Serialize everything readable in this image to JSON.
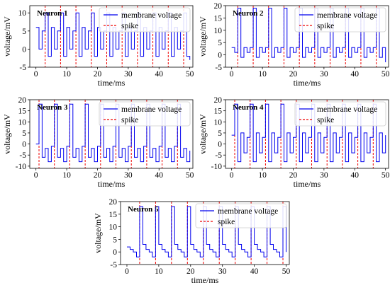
{
  "colors": {
    "voltage": "#0000ee",
    "spike": "#ee0000",
    "axis": "#000000"
  },
  "chart_data": [
    {
      "type": "line",
      "title": "Neuron 1",
      "xlabel": "time/ms",
      "ylabel": "voltage/mV",
      "xlim": [
        -2,
        51
      ],
      "ylim": [
        -5,
        12
      ],
      "xticks": [
        0,
        10,
        20,
        30,
        40,
        50
      ],
      "yticks": [
        -5,
        0,
        5,
        10
      ],
      "grid": false,
      "legend": {
        "placement": "top-right",
        "entries": [
          "membrane voltage",
          "spike"
        ]
      },
      "spike_times": [
        3,
        8,
        13,
        18,
        23,
        28,
        33,
        38,
        43,
        48
      ],
      "series": [
        {
          "name": "membrane voltage",
          "x": [
            0,
            1,
            2,
            3,
            4,
            5,
            6,
            7,
            8,
            9,
            10,
            11,
            12,
            13,
            14,
            15,
            16,
            17,
            18,
            19,
            20,
            21,
            22,
            23,
            24,
            25,
            26,
            27,
            28,
            29,
            30,
            31,
            32,
            33,
            34,
            35,
            36,
            37,
            38,
            39,
            40,
            41,
            42,
            43,
            44,
            45,
            46,
            47,
            48,
            49,
            50
          ],
          "y": [
            6,
            0,
            5,
            10,
            -2,
            6,
            0,
            5,
            10,
            -2,
            6,
            0,
            5,
            10,
            -2,
            6,
            0,
            5,
            10,
            -2,
            6,
            0,
            5,
            10,
            -2,
            6,
            0,
            5,
            10,
            -2,
            6,
            0,
            5,
            10,
            -2,
            6,
            0,
            5,
            10,
            -2,
            6,
            0,
            5,
            10,
            -2,
            6,
            0,
            5,
            10,
            -2,
            -3
          ]
        },
        {
          "name": "spike",
          "style": "dashed"
        }
      ]
    },
    {
      "type": "line",
      "title": "Neuron 2",
      "xlabel": "time/ms",
      "ylabel": "voltage/mV",
      "xlim": [
        -2,
        51
      ],
      "ylim": [
        -5,
        20
      ],
      "xticks": [
        0,
        10,
        20,
        30,
        40,
        50
      ],
      "yticks": [
        -5,
        0,
        5,
        10,
        15,
        20
      ],
      "grid": false,
      "legend": {
        "placement": "top-right",
        "entries": [
          "membrane voltage",
          "spike"
        ]
      },
      "spike_times": [
        2,
        7,
        12,
        17,
        22,
        27,
        32,
        37,
        42,
        47
      ],
      "series": [
        {
          "name": "membrane voltage",
          "x": [
            0,
            1,
            2,
            3,
            4,
            5,
            6,
            7,
            8,
            9,
            10,
            11,
            12,
            13,
            14,
            15,
            16,
            17,
            18,
            19,
            20,
            21,
            22,
            23,
            24,
            25,
            26,
            27,
            28,
            29,
            30,
            31,
            32,
            33,
            34,
            35,
            36,
            37,
            38,
            39,
            40,
            41,
            42,
            43,
            44,
            45,
            46,
            47,
            48,
            49,
            50
          ],
          "y": [
            3,
            1,
            19,
            -1,
            3,
            1,
            3,
            19,
            -1,
            3,
            1,
            3,
            19,
            -1,
            3,
            1,
            3,
            19,
            -1,
            3,
            1,
            3,
            19,
            -1,
            3,
            1,
            3,
            19,
            -1,
            3,
            1,
            3,
            19,
            -1,
            3,
            1,
            3,
            19,
            -1,
            3,
            1,
            3,
            19,
            -1,
            3,
            1,
            3,
            19,
            -1,
            3,
            -3
          ]
        },
        {
          "name": "spike",
          "style": "dashed"
        }
      ]
    },
    {
      "type": "line",
      "title": "Neuron 3",
      "xlabel": "time/ms",
      "ylabel": "voltage/mV",
      "xlim": [
        -2,
        51
      ],
      "ylim": [
        -11,
        20
      ],
      "xticks": [
        0,
        10,
        20,
        30,
        40,
        50
      ],
      "yticks": [
        -10,
        -5,
        0,
        5,
        10,
        15,
        20
      ],
      "grid": false,
      "legend": {
        "placement": "top-right",
        "entries": [
          "membrane voltage",
          "spike"
        ]
      },
      "spike_times": [
        1,
        6,
        11,
        16,
        21,
        26,
        31,
        36,
        41,
        46
      ],
      "series": [
        {
          "name": "membrane voltage",
          "x": [
            0,
            1,
            2,
            3,
            4,
            5,
            6,
            7,
            8,
            9,
            10,
            11,
            12,
            13,
            14,
            15,
            16,
            17,
            18,
            19,
            20,
            21,
            22,
            23,
            24,
            25,
            26,
            27,
            28,
            29,
            30,
            31,
            32,
            33,
            34,
            35,
            36,
            37,
            38,
            39,
            40,
            41,
            42,
            43,
            44,
            45,
            46,
            47,
            48,
            49,
            50
          ],
          "y": [
            0,
            18,
            -6,
            -2,
            -8,
            -1,
            18,
            -6,
            -2,
            -8,
            -1,
            18,
            -6,
            -2,
            -8,
            -1,
            18,
            -6,
            -2,
            -8,
            -1,
            18,
            -6,
            -2,
            -8,
            -1,
            18,
            -6,
            -2,
            -8,
            -1,
            18,
            -6,
            -2,
            -8,
            -1,
            18,
            -6,
            -2,
            -8,
            -1,
            18,
            -6,
            -2,
            -8,
            -1,
            18,
            -6,
            -2,
            -8,
            -3
          ]
        },
        {
          "name": "spike",
          "style": "dashed"
        }
      ]
    },
    {
      "type": "line",
      "title": "Neuron 4",
      "xlabel": "time/ms",
      "ylabel": "voltage/mV",
      "xlim": [
        -2,
        51
      ],
      "ylim": [
        -11,
        20
      ],
      "xticks": [
        0,
        10,
        20,
        30,
        40,
        50
      ],
      "yticks": [
        -10,
        -5,
        0,
        5,
        10,
        15,
        20
      ],
      "grid": false,
      "legend": {
        "placement": "top-right",
        "entries": [
          "membrane voltage",
          "spike"
        ]
      },
      "spike_times": [
        1,
        6,
        11,
        16,
        21,
        26,
        31,
        36,
        41,
        46
      ],
      "series": [
        {
          "name": "membrane voltage",
          "x": [
            0,
            1,
            2,
            3,
            4,
            5,
            6,
            7,
            8,
            9,
            10,
            11,
            12,
            13,
            14,
            15,
            16,
            17,
            18,
            19,
            20,
            21,
            22,
            23,
            24,
            25,
            26,
            27,
            28,
            29,
            30,
            31,
            32,
            33,
            34,
            35,
            36,
            37,
            38,
            39,
            40,
            41,
            42,
            43,
            44,
            45,
            46,
            47,
            48,
            49,
            50
          ],
          "y": [
            4,
            18,
            -8,
            5,
            -4,
            3,
            18,
            -8,
            5,
            -4,
            3,
            18,
            -8,
            5,
            -4,
            3,
            18,
            -8,
            5,
            -4,
            3,
            18,
            -8,
            5,
            -4,
            3,
            18,
            -8,
            5,
            -4,
            3,
            18,
            -8,
            5,
            -4,
            3,
            18,
            -8,
            5,
            -4,
            3,
            18,
            -8,
            5,
            -4,
            3,
            18,
            -8,
            5,
            -4,
            4
          ]
        },
        {
          "name": "spike",
          "style": "dashed"
        }
      ]
    },
    {
      "type": "line",
      "title": "Neuron 5",
      "xlabel": "time/ms",
      "ylabel": "voltage/mV",
      "xlim": [
        -2,
        51
      ],
      "ylim": [
        -5,
        20
      ],
      "xticks": [
        0,
        10,
        20,
        30,
        40,
        50
      ],
      "yticks": [
        -5,
        0,
        5,
        10,
        15,
        20
      ],
      "grid": false,
      "legend": {
        "placement": "top-right",
        "entries": [
          "membrane voltage",
          "spike"
        ]
      },
      "spike_times": [
        4,
        9,
        14,
        19,
        24,
        29,
        34,
        39,
        44,
        49
      ],
      "series": [
        {
          "name": "membrane voltage",
          "x": [
            0,
            1,
            2,
            3,
            4,
            5,
            6,
            7,
            8,
            9,
            10,
            11,
            12,
            13,
            14,
            15,
            16,
            17,
            18,
            19,
            20,
            21,
            22,
            23,
            24,
            25,
            26,
            27,
            28,
            29,
            30,
            31,
            32,
            33,
            34,
            35,
            36,
            37,
            38,
            39,
            40,
            41,
            42,
            43,
            44,
            45,
            46,
            47,
            48,
            49,
            50
          ],
          "y": [
            2,
            1,
            0,
            -2,
            18,
            3,
            1,
            0,
            -2,
            18,
            3,
            1,
            0,
            -2,
            18,
            3,
            1,
            0,
            -2,
            18,
            3,
            1,
            0,
            -2,
            18,
            3,
            1,
            0,
            -2,
            18,
            3,
            1,
            0,
            -2,
            18,
            3,
            1,
            0,
            -2,
            18,
            3,
            1,
            0,
            -2,
            18,
            3,
            1,
            0,
            -2,
            18,
            0
          ]
        },
        {
          "name": "spike",
          "style": "dashed"
        }
      ]
    }
  ]
}
